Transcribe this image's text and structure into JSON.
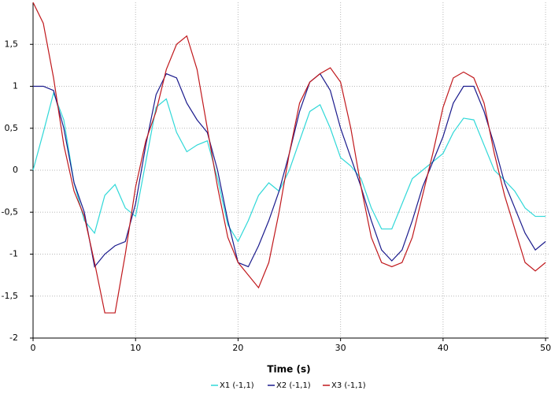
{
  "chart_data": {
    "type": "line",
    "x_label": "Time (s)",
    "x": [
      0,
      1,
      2,
      3,
      4,
      5,
      6,
      7,
      8,
      9,
      10,
      11,
      12,
      13,
      14,
      15,
      16,
      17,
      18,
      19,
      20,
      21,
      22,
      23,
      24,
      25,
      26,
      27,
      28,
      29,
      30,
      31,
      32,
      33,
      34,
      35,
      36,
      37,
      38,
      39,
      40,
      41,
      42,
      43,
      44,
      45,
      46,
      47,
      48,
      49,
      50
    ],
    "series": [
      {
        "name": "X1 (-1,1)",
        "color": "#30d8d8",
        "values": [
          0.0,
          0.45,
          0.92,
          0.6,
          -0.15,
          -0.6,
          -0.75,
          -0.3,
          -0.17,
          -0.45,
          -0.55,
          0.1,
          0.75,
          0.85,
          0.45,
          0.22,
          0.3,
          0.35,
          -0.1,
          -0.65,
          -0.85,
          -0.6,
          -0.3,
          -0.15,
          -0.25,
          0.0,
          0.35,
          0.7,
          0.78,
          0.5,
          0.15,
          0.05,
          -0.1,
          -0.45,
          -0.7,
          -0.7,
          -0.4,
          -0.1,
          0.0,
          0.1,
          0.2,
          0.45,
          0.62,
          0.6,
          0.3,
          0.0,
          -0.12,
          -0.25,
          -0.45,
          -0.55,
          -0.55
        ]
      },
      {
        "name": "X2 (-1,1)",
        "color": "#1a1a8c",
        "values": [
          1.0,
          1.0,
          0.95,
          0.5,
          -0.15,
          -0.5,
          -1.15,
          -1.0,
          -0.9,
          -0.85,
          -0.4,
          0.3,
          0.9,
          1.15,
          1.1,
          0.8,
          0.6,
          0.45,
          0.0,
          -0.6,
          -1.1,
          -1.15,
          -0.9,
          -0.6,
          -0.25,
          0.2,
          0.7,
          1.05,
          1.15,
          0.95,
          0.5,
          0.15,
          -0.2,
          -0.6,
          -0.95,
          -1.08,
          -0.95,
          -0.6,
          -0.2,
          0.1,
          0.4,
          0.8,
          1.0,
          1.0,
          0.7,
          0.3,
          -0.15,
          -0.45,
          -0.75,
          -0.95,
          -0.85
        ]
      },
      {
        "name": "X3 (-1,1)",
        "color": "#c0181c",
        "values": [
          2.0,
          1.75,
          1.1,
          0.3,
          -0.25,
          -0.55,
          -1.1,
          -1.7,
          -1.7,
          -1.0,
          -0.2,
          0.35,
          0.7,
          1.2,
          1.5,
          1.6,
          1.2,
          0.5,
          -0.2,
          -0.8,
          -1.1,
          -1.25,
          -1.4,
          -1.1,
          -0.5,
          0.2,
          0.8,
          1.05,
          1.15,
          1.22,
          1.05,
          0.5,
          -0.2,
          -0.8,
          -1.1,
          -1.15,
          -1.1,
          -0.8,
          -0.3,
          0.2,
          0.75,
          1.1,
          1.17,
          1.1,
          0.8,
          0.2,
          -0.3,
          -0.7,
          -1.1,
          -1.2,
          -1.1
        ]
      }
    ],
    "xlim": [
      0,
      50.3
    ],
    "xticks": [
      0,
      10,
      20,
      30,
      40,
      50
    ],
    "ylim": [
      -2,
      2
    ],
    "yticks": [
      -2,
      {
        "value": -1.5,
        "label": "-1,5"
      },
      -1,
      {
        "value": -0.5,
        "label": "-0,5"
      },
      0,
      {
        "value": 0.5,
        "label": "0,5"
      },
      1,
      {
        "value": 1.5,
        "label": "1,5"
      }
    ],
    "grid": true,
    "legend": "bottom"
  }
}
